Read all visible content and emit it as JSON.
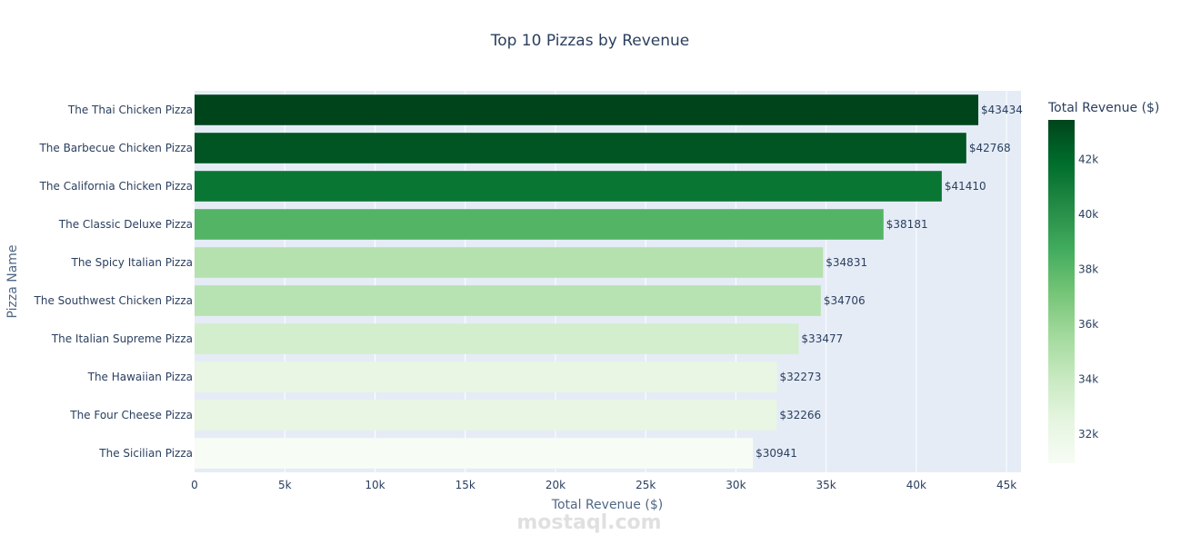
{
  "chart_data": {
    "type": "bar",
    "orientation": "horizontal",
    "title": "Top 10 Pizzas by Revenue",
    "xlabel": "Total Revenue ($)",
    "ylabel": "Pizza Name",
    "xlim": [
      0,
      45800
    ],
    "x_ticks": [
      0,
      5000,
      10000,
      15000,
      20000,
      25000,
      30000,
      35000,
      40000,
      45000
    ],
    "x_tick_labels": [
      "0",
      "5k",
      "10k",
      "15k",
      "20k",
      "25k",
      "30k",
      "35k",
      "40k",
      "45k"
    ],
    "categories": [
      "The Thai Chicken Pizza",
      "The Barbecue Chicken Pizza",
      "The California Chicken Pizza",
      "The Classic Deluxe Pizza",
      "The Spicy Italian Pizza",
      "The Southwest Chicken Pizza",
      "The Italian Supreme Pizza",
      "The Hawaiian Pizza",
      "The Four Cheese Pizza",
      "The Sicilian Pizza"
    ],
    "values": [
      43434,
      42768,
      41410,
      38181,
      34831,
      34706,
      33477,
      32273,
      32266,
      30941
    ],
    "data_labels": [
      "$43434",
      "$42768",
      "$41410",
      "$38181",
      "$34831",
      "$34706",
      "$33477",
      "$32273",
      "$32266",
      "$30941"
    ],
    "colorbar": {
      "title": "Total Revenue ($)",
      "range": [
        30941,
        43434
      ],
      "ticks": [
        32000,
        34000,
        36000,
        38000,
        40000,
        42000
      ],
      "tick_labels": [
        "32k",
        "34k",
        "36k",
        "38k",
        "40k",
        "42k"
      ],
      "colorscale": [
        "#f7fcf5",
        "#e5f5e0",
        "#c7e9c0",
        "#a1d99b",
        "#74c476",
        "#41ab5d",
        "#238b45",
        "#006d2c",
        "#00441b"
      ]
    },
    "grid": true,
    "legend": "right"
  },
  "colors": {
    "plot_bg": "#e5ecf6",
    "grid": "#ffffff",
    "text": "#2a3f5f"
  },
  "watermark": {
    "text": "mostaql.com"
  }
}
